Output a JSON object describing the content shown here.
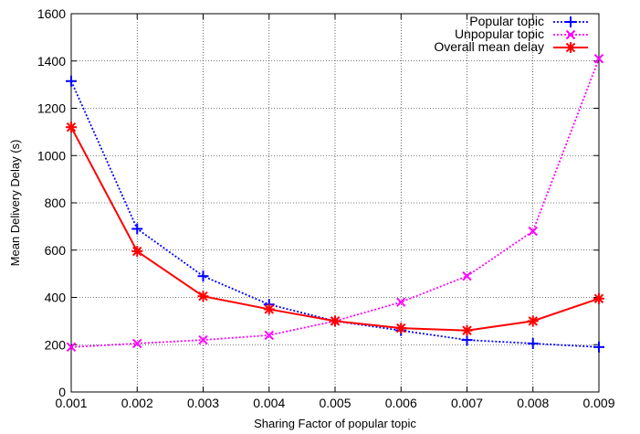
{
  "chart_data": {
    "type": "line",
    "title": "",
    "xlabel": "Sharing Factor of popular topic",
    "ylabel": "Mean Delivery Delay (s)",
    "xlim": [
      0.001,
      0.009
    ],
    "ylim": [
      0,
      1600
    ],
    "x": [
      0.001,
      0.002,
      0.003,
      0.004,
      0.005,
      0.006,
      0.007,
      0.008,
      0.009
    ],
    "x_tick_labels": [
      "0.001",
      "0.002",
      "0.003",
      "0.004",
      "0.005",
      "0.006",
      "0.007",
      "0.008",
      "0.009"
    ],
    "y_ticks": [
      0,
      200,
      400,
      600,
      800,
      1000,
      1200,
      1400,
      1600
    ],
    "y_tick_labels": [
      "0",
      "200",
      "400",
      "600",
      "800",
      "1000",
      "1200",
      "1400",
      "1600"
    ],
    "grid": true,
    "legend_position": "top-right",
    "series": [
      {
        "name": "Popular topic",
        "color": "#0000ff",
        "marker": "plus",
        "line": "dotted",
        "values": [
          1315,
          690,
          490,
          370,
          300,
          260,
          220,
          205,
          190
        ]
      },
      {
        "name": "Unpopular topic",
        "color": "#ff00ff",
        "marker": "x",
        "line": "dotted",
        "values": [
          190,
          205,
          220,
          240,
          300,
          380,
          490,
          680,
          1410
        ]
      },
      {
        "name": "Overall mean delay",
        "color": "#ff0000",
        "marker": "star",
        "line": "solid",
        "values": [
          1120,
          595,
          405,
          350,
          300,
          270,
          260,
          300,
          395
        ]
      }
    ]
  }
}
